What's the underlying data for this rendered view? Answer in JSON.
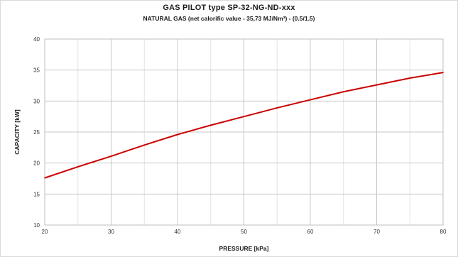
{
  "chart_data": {
    "type": "line",
    "title": "GAS PILOT type SP-32-NG-ND-xxx",
    "subtitle": "NATURAL GAS (net calorific value - 35,73 MJ/Nm³) - (0.5/1.5)",
    "xlabel": "PRESSURE [kPa]",
    "ylabel": "CAPACITY [kW]",
    "xlim": [
      20,
      80
    ],
    "ylim": [
      10,
      40
    ],
    "x_ticks": [
      20,
      30,
      40,
      50,
      60,
      70,
      80
    ],
    "y_ticks": [
      10,
      15,
      20,
      25,
      30,
      35,
      40
    ],
    "x_minor_step": 5,
    "grid": true,
    "series": [
      {
        "color": "#cc0000",
        "x": [
          20,
          25,
          30,
          35,
          40,
          45,
          50,
          55,
          60,
          65,
          70,
          75,
          80
        ],
        "y": [
          17.6,
          19.4,
          21.1,
          22.9,
          24.6,
          26.1,
          27.5,
          28.9,
          30.2,
          31.5,
          32.6,
          33.7,
          34.6
        ]
      }
    ]
  }
}
